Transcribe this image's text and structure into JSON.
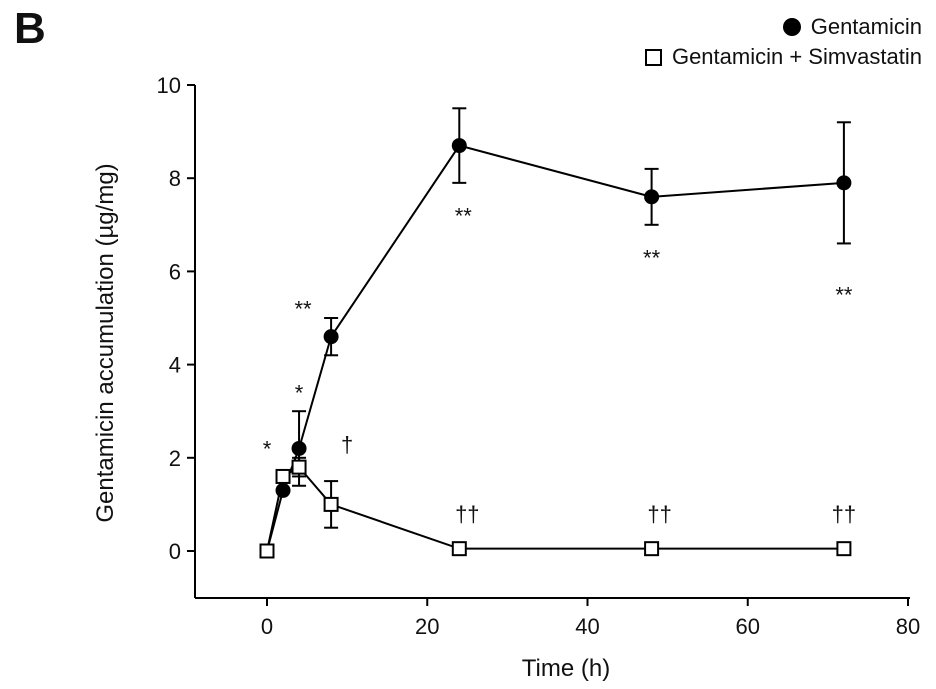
{
  "panel_label": "B",
  "chart_data": {
    "type": "line",
    "title": "",
    "xlabel": "Time (h)",
    "ylabel": "Gentamicin accumulation (µg/mg)",
    "xlim": [
      -10,
      80
    ],
    "ylim": [
      -1,
      10
    ],
    "xticks": [
      0,
      20,
      40,
      60,
      80
    ],
    "yticks": [
      0,
      2,
      4,
      6,
      8,
      10
    ],
    "grid": false,
    "legend_position": "top-right",
    "series": [
      {
        "name": "Gentamicin",
        "marker": "filled-circle",
        "color": "#000000",
        "x": [
          0,
          2,
          4,
          8,
          24,
          48,
          72
        ],
        "y": [
          0.0,
          1.3,
          2.2,
          4.6,
          8.7,
          7.6,
          7.9
        ],
        "error": [
          0,
          0,
          0.8,
          0.4,
          0.8,
          0.6,
          1.3
        ]
      },
      {
        "name": "Gentamicin + Simvastatin",
        "marker": "open-square",
        "color": "#000000",
        "x": [
          0,
          2,
          4,
          8,
          24,
          48,
          72
        ],
        "y": [
          0.0,
          1.6,
          1.8,
          1.0,
          0.05,
          0.05,
          0.05
        ],
        "error": [
          0,
          0,
          0.2,
          0.5,
          0,
          0,
          0
        ]
      }
    ],
    "annotations": [
      {
        "text": "*",
        "x": 0,
        "y": 2.2
      },
      {
        "text": "*",
        "x": 4,
        "y": 3.4
      },
      {
        "text": "**",
        "x": 4.5,
        "y": 5.2
      },
      {
        "text": "†",
        "x": 10,
        "y": 2.3
      },
      {
        "text": "**",
        "x": 24.5,
        "y": 7.2
      },
      {
        "text": "**",
        "x": 48,
        "y": 6.3
      },
      {
        "text": "**",
        "x": 72,
        "y": 5.5
      },
      {
        "text": "††",
        "x": 25,
        "y": 0.8
      },
      {
        "text": "††",
        "x": 49,
        "y": 0.8
      },
      {
        "text": "††",
        "x": 72,
        "y": 0.8
      }
    ]
  }
}
